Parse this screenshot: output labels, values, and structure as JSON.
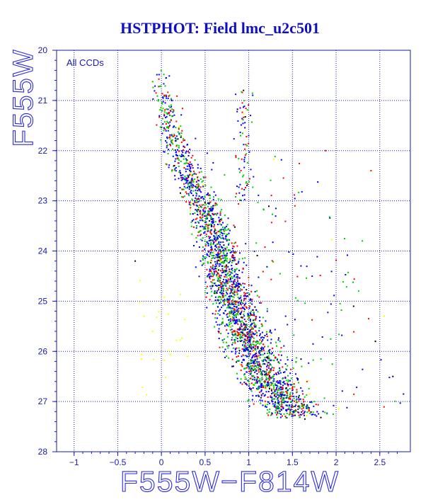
{
  "chart_data": {
    "type": "scatter",
    "title": "HSTPHOT: Field lmc_u2c501",
    "xlabel": "F555W−F814W",
    "ylabel": "F555W",
    "annotation": "All CCDs",
    "xlim": [
      -1.2,
      2.85
    ],
    "ylim": [
      20,
      28
    ],
    "y_inverted": true,
    "grid": true,
    "grid_style": "dotted",
    "x_ticks": [
      -1,
      -0.5,
      0,
      0.5,
      1,
      1.5,
      2,
      2.5
    ],
    "x_tick_labels": [
      "−1",
      "−0.5",
      "0",
      "0.5",
      "1",
      "1.5",
      "2",
      "2.5"
    ],
    "y_ticks": [
      20,
      21,
      22,
      23,
      24,
      25,
      26,
      27,
      28
    ],
    "y_tick_labels": [
      "20",
      "21",
      "22",
      "23",
      "24",
      "25",
      "26",
      "27",
      "28"
    ],
    "point_colors": [
      "#0000ff",
      "#00cc00",
      "#ff0000",
      "#000000",
      "#ffff00"
    ],
    "main_sequence_ridge": [
      {
        "mag": 20.5,
        "color": 0.0
      },
      {
        "mag": 21.5,
        "color": 0.1
      },
      {
        "mag": 22.5,
        "color": 0.3
      },
      {
        "mag": 23.0,
        "color": 0.45
      },
      {
        "mag": 23.5,
        "color": 0.58
      },
      {
        "mag": 24.0,
        "color": 0.67
      },
      {
        "mag": 24.5,
        "color": 0.74
      },
      {
        "mag": 25.0,
        "color": 0.82
      },
      {
        "mag": 25.5,
        "color": 0.93
      },
      {
        "mag": 26.0,
        "color": 1.06
      },
      {
        "mag": 26.5,
        "color": 1.2
      },
      {
        "mag": 27.0,
        "color": 1.4
      },
      {
        "mag": 27.2,
        "color": 1.5
      }
    ],
    "series": [
      {
        "values": [
          [
            0.66,
            24.0
          ],
          [
            0.7,
            24.3
          ],
          [
            0.75,
            24.6
          ],
          [
            0.8,
            24.9
          ],
          [
            0.86,
            25.2
          ],
          [
            0.92,
            25.5
          ],
          [
            1.0,
            25.8
          ],
          [
            1.08,
            26.1
          ],
          [
            1.18,
            26.4
          ],
          [
            1.3,
            26.8
          ],
          [
            0.55,
            23.4
          ],
          [
            0.6,
            23.7
          ],
          [
            0.4,
            22.9
          ],
          [
            1.42,
            27.0
          ],
          [
            1.02,
            21.3
          ]
        ]
      },
      {
        "values": [
          [
            0.1,
            21.3
          ],
          [
            0.2,
            21.9
          ],
          [
            0.3,
            22.5
          ],
          [
            0.52,
            23.3
          ],
          [
            0.72,
            24.4
          ],
          [
            0.88,
            25.4
          ],
          [
            1.12,
            26.3
          ],
          [
            1.35,
            26.9
          ],
          [
            1.75,
            27.0
          ],
          [
            2.3,
            23.8
          ]
        ]
      },
      {
        "values": [
          [
            0.05,
            20.9
          ],
          [
            0.15,
            21.7
          ],
          [
            0.35,
            22.6
          ],
          [
            0.62,
            23.8
          ],
          [
            0.8,
            24.8
          ],
          [
            0.98,
            25.7
          ],
          [
            1.22,
            26.6
          ],
          [
            1.5,
            27.1
          ],
          [
            1.88,
            22.0
          ],
          [
            2.4,
            22.4
          ]
        ]
      },
      {
        "values": [
          [
            -0.3,
            24.2
          ],
          [
            2.2,
            25.1
          ],
          [
            2.45,
            25.8
          ],
          [
            2.65,
            26.5
          ],
          [
            0.94,
            20.8
          ]
        ]
      },
      {
        "values": [
          [
            -0.2,
            25.3
          ],
          [
            -0.1,
            25.6
          ],
          [
            0.3,
            26.1
          ],
          [
            2.55,
            25.3
          ]
        ]
      }
    ]
  }
}
